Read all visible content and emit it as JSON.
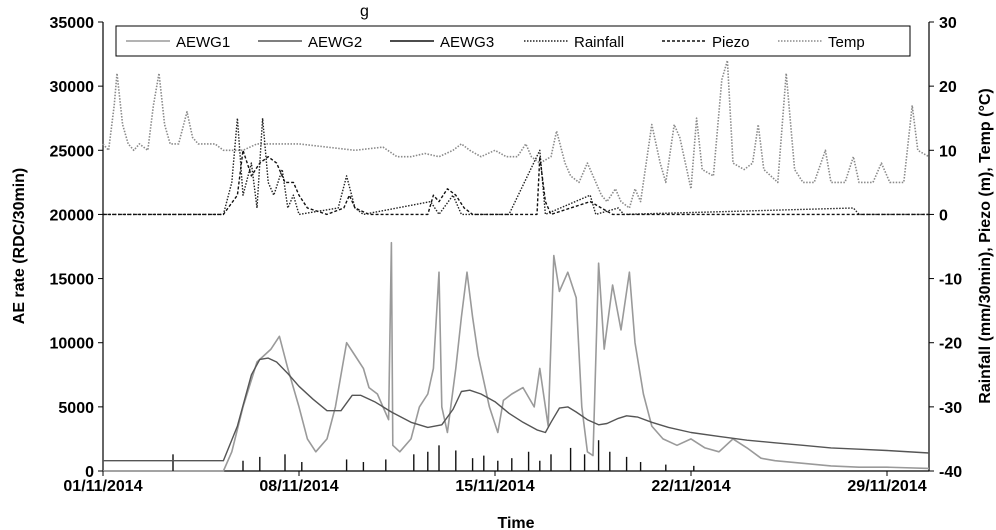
{
  "page": {
    "title_fragment": "g"
  },
  "chart_data": {
    "type": "line",
    "xlabel": "Time",
    "ylabel": "AE rate (RDC/30min)",
    "y2label": "Rainfall (mm/30min), Piezo (m), Temp (°C)",
    "xlim": [
      0,
      29.5
    ],
    "ylim": [
      0,
      35000
    ],
    "y2lim": [
      -40,
      30
    ],
    "x_tick_labels": [
      "01/11/2014",
      "08/11/2014",
      "15/11/2014",
      "22/11/2014",
      "29/11/2014"
    ],
    "x_tick_values": [
      0,
      7,
      14,
      21,
      28
    ],
    "y_ticks": [
      0,
      5000,
      10000,
      15000,
      20000,
      25000,
      30000,
      35000
    ],
    "y2_ticks": [
      -40,
      -30,
      -20,
      -10,
      0,
      10,
      20,
      30
    ],
    "grid": false,
    "legend_position": "top",
    "colors": {
      "AEWG1": "#9a9a9a",
      "AEWG2": "#555555",
      "AEWG3": "#111111",
      "Rainfall": "#222222",
      "Piezo": "#111111",
      "Temp": "#8a8a8a"
    },
    "series": [
      {
        "name": "AEWG1",
        "axis": "left",
        "style": "solid",
        "x_unit": "days since 01/11/2014",
        "points": [
          [
            0,
            0
          ],
          [
            4.3,
            0
          ],
          [
            4.6,
            1500
          ],
          [
            5,
            5000
          ],
          [
            5.5,
            8500
          ],
          [
            6,
            9500
          ],
          [
            6.3,
            10500
          ],
          [
            6.6,
            8000
          ],
          [
            7,
            5000
          ],
          [
            7.3,
            2500
          ],
          [
            7.6,
            1500
          ],
          [
            8,
            2500
          ],
          [
            8.3,
            5000
          ],
          [
            8.7,
            10000
          ],
          [
            9,
            9000
          ],
          [
            9.3,
            8000
          ],
          [
            9.5,
            6500
          ],
          [
            9.8,
            6000
          ],
          [
            10,
            5000
          ],
          [
            10.2,
            4000
          ],
          [
            10.3,
            17800
          ],
          [
            10.35,
            2000
          ],
          [
            10.6,
            1500
          ],
          [
            11,
            2500
          ],
          [
            11.3,
            5000
          ],
          [
            11.6,
            6000
          ],
          [
            11.8,
            8000
          ],
          [
            12,
            15500
          ],
          [
            12.1,
            5000
          ],
          [
            12.3,
            3000
          ],
          [
            12.6,
            8000
          ],
          [
            12.8,
            12000
          ],
          [
            13,
            15500
          ],
          [
            13.2,
            12000
          ],
          [
            13.4,
            9000
          ],
          [
            13.6,
            7000
          ],
          [
            13.8,
            5000
          ],
          [
            14.1,
            3000
          ],
          [
            14.3,
            5500
          ],
          [
            14.6,
            6000
          ],
          [
            15,
            6500
          ],
          [
            15.4,
            5000
          ],
          [
            15.6,
            8000
          ],
          [
            15.9,
            3500
          ],
          [
            16.1,
            16800
          ],
          [
            16.3,
            14000
          ],
          [
            16.6,
            15500
          ],
          [
            16.9,
            13500
          ],
          [
            17.1,
            5000
          ],
          [
            17.3,
            1500
          ],
          [
            17.5,
            1200
          ],
          [
            17.7,
            16200
          ],
          [
            17.9,
            9500
          ],
          [
            18.2,
            14500
          ],
          [
            18.5,
            11000
          ],
          [
            18.8,
            15500
          ],
          [
            19,
            10000
          ],
          [
            19.3,
            6000
          ],
          [
            19.6,
            3500
          ],
          [
            20,
            2500
          ],
          [
            20.5,
            2000
          ],
          [
            21,
            2500
          ],
          [
            21.5,
            1800
          ],
          [
            22,
            1500
          ],
          [
            22.5,
            2500
          ],
          [
            23,
            1800
          ],
          [
            23.5,
            1000
          ],
          [
            24,
            800
          ],
          [
            25,
            600
          ],
          [
            26,
            400
          ],
          [
            27,
            300
          ],
          [
            28,
            300
          ],
          [
            29.5,
            200
          ]
        ]
      },
      {
        "name": "AEWG2",
        "axis": "left",
        "style": "solid",
        "x_unit": "days since 01/11/2014",
        "points": [
          [
            0,
            800
          ],
          [
            4.3,
            800
          ],
          [
            4.8,
            3500
          ],
          [
            5.3,
            7500
          ],
          [
            5.6,
            8700
          ],
          [
            5.9,
            8800
          ],
          [
            6.2,
            8500
          ],
          [
            6.6,
            7600
          ],
          [
            7,
            6600
          ],
          [
            7.5,
            5600
          ],
          [
            8,
            4700
          ],
          [
            8.5,
            4700
          ],
          [
            8.9,
            5900
          ],
          [
            9.2,
            5900
          ],
          [
            9.7,
            5400
          ],
          [
            10.3,
            4600
          ],
          [
            11,
            3800
          ],
          [
            11.6,
            3400
          ],
          [
            12.1,
            3600
          ],
          [
            12.5,
            4800
          ],
          [
            12.8,
            6200
          ],
          [
            13.1,
            6300
          ],
          [
            13.5,
            6000
          ],
          [
            14,
            5400
          ],
          [
            14.5,
            4500
          ],
          [
            15,
            3800
          ],
          [
            15.5,
            3200
          ],
          [
            15.8,
            3000
          ],
          [
            16,
            3800
          ],
          [
            16.3,
            4900
          ],
          [
            16.6,
            5000
          ],
          [
            16.9,
            4600
          ],
          [
            17.3,
            4000
          ],
          [
            17.7,
            3600
          ],
          [
            18,
            3700
          ],
          [
            18.4,
            4100
          ],
          [
            18.7,
            4300
          ],
          [
            19.1,
            4200
          ],
          [
            19.6,
            3800
          ],
          [
            20.2,
            3400
          ],
          [
            21,
            3000
          ],
          [
            22,
            2700
          ],
          [
            23,
            2400
          ],
          [
            24,
            2200
          ],
          [
            25,
            2000
          ],
          [
            26,
            1800
          ],
          [
            27,
            1700
          ],
          [
            28,
            1600
          ],
          [
            29.5,
            1400
          ]
        ]
      },
      {
        "name": "AEWG3",
        "axis": "left",
        "style": "spikes",
        "x_unit": "days since 01/11/2014",
        "points": [
          [
            2.5,
            1300
          ],
          [
            5,
            800
          ],
          [
            5.6,
            1100
          ],
          [
            6.5,
            1300
          ],
          [
            7.1,
            700
          ],
          [
            8.7,
            900
          ],
          [
            9.3,
            700
          ],
          [
            10.1,
            900
          ],
          [
            11.1,
            1300
          ],
          [
            11.6,
            1500
          ],
          [
            12,
            2000
          ],
          [
            12.6,
            1600
          ],
          [
            13.2,
            1000
          ],
          [
            13.6,
            1200
          ],
          [
            14.1,
            800
          ],
          [
            14.6,
            1000
          ],
          [
            15.2,
            1500
          ],
          [
            15.6,
            800
          ],
          [
            16,
            1300
          ],
          [
            16.7,
            1800
          ],
          [
            17.2,
            1300
          ],
          [
            17.7,
            2400
          ],
          [
            18.1,
            1500
          ],
          [
            18.7,
            1100
          ],
          [
            19.2,
            700
          ],
          [
            20.1,
            500
          ],
          [
            21.1,
            400
          ]
        ]
      },
      {
        "name": "Rainfall",
        "axis": "right",
        "style": "dotted",
        "x_unit": "days since 01/11/2014",
        "points": [
          [
            0,
            0
          ],
          [
            4.3,
            0
          ],
          [
            4.6,
            5
          ],
          [
            4.8,
            15
          ],
          [
            5,
            3
          ],
          [
            5.3,
            8
          ],
          [
            5.5,
            1
          ],
          [
            5.7,
            15
          ],
          [
            5.9,
            5
          ],
          [
            6.1,
            3
          ],
          [
            6.4,
            7
          ],
          [
            6.6,
            1
          ],
          [
            6.8,
            3
          ],
          [
            7,
            0
          ],
          [
            8.4,
            1
          ],
          [
            8.7,
            6
          ],
          [
            9,
            1
          ],
          [
            9.3,
            0
          ],
          [
            11.7,
            2
          ],
          [
            12,
            0
          ],
          [
            12.5,
            3
          ],
          [
            12.8,
            0
          ],
          [
            14.5,
            0
          ],
          [
            15.6,
            10
          ],
          [
            15.8,
            0
          ],
          [
            17.4,
            3
          ],
          [
            17.6,
            0
          ],
          [
            18.4,
            1
          ],
          [
            18.6,
            0
          ],
          [
            26.8,
            1
          ],
          [
            27,
            0
          ],
          [
            29.5,
            0
          ]
        ]
      },
      {
        "name": "Piezo",
        "axis": "right",
        "style": "dashed",
        "x_unit": "days since 01/11/2014",
        "points": [
          [
            0,
            0
          ],
          [
            4.3,
            0
          ],
          [
            4.8,
            3
          ],
          [
            5,
            10
          ],
          [
            5.3,
            6
          ],
          [
            5.6,
            8
          ],
          [
            5.9,
            9
          ],
          [
            6.2,
            8
          ],
          [
            6.5,
            5
          ],
          [
            6.8,
            5
          ],
          [
            7,
            3
          ],
          [
            7.3,
            1
          ],
          [
            8,
            0
          ],
          [
            8.6,
            1
          ],
          [
            8.8,
            3
          ],
          [
            9,
            1
          ],
          [
            9.5,
            0
          ],
          [
            11.6,
            0
          ],
          [
            11.8,
            3
          ],
          [
            12,
            2
          ],
          [
            12.3,
            4
          ],
          [
            12.6,
            3
          ],
          [
            12.9,
            1
          ],
          [
            13.2,
            0
          ],
          [
            15.5,
            0
          ],
          [
            15.6,
            9
          ],
          [
            15.8,
            2
          ],
          [
            16,
            0
          ],
          [
            17.4,
            2
          ],
          [
            17.8,
            1
          ],
          [
            18.2,
            0
          ],
          [
            29.5,
            0
          ]
        ]
      },
      {
        "name": "Temp",
        "axis": "right",
        "style": "dotted",
        "x_unit": "days since 01/11/2014",
        "points": [
          [
            0,
            11
          ],
          [
            0.2,
            10
          ],
          [
            0.4,
            17
          ],
          [
            0.5,
            22
          ],
          [
            0.7,
            14
          ],
          [
            0.9,
            11
          ],
          [
            1.1,
            10
          ],
          [
            1.3,
            11
          ],
          [
            1.6,
            10
          ],
          [
            1.8,
            17
          ],
          [
            2,
            22
          ],
          [
            2.2,
            14
          ],
          [
            2.4,
            11
          ],
          [
            2.7,
            11
          ],
          [
            3,
            16
          ],
          [
            3.2,
            12
          ],
          [
            3.4,
            11
          ],
          [
            3.6,
            11
          ],
          [
            4,
            11
          ],
          [
            4.3,
            10
          ],
          [
            4.6,
            10
          ],
          [
            5,
            10
          ],
          [
            5.5,
            11
          ],
          [
            6,
            11
          ],
          [
            7,
            11
          ],
          [
            8,
            10.5
          ],
          [
            9,
            10
          ],
          [
            10,
            10.5
          ],
          [
            10.5,
            9
          ],
          [
            11,
            9
          ],
          [
            11.5,
            9.5
          ],
          [
            12,
            9
          ],
          [
            12.5,
            10
          ],
          [
            12.8,
            11
          ],
          [
            13.1,
            10
          ],
          [
            13.5,
            9
          ],
          [
            14,
            10
          ],
          [
            14.4,
            9
          ],
          [
            14.8,
            9
          ],
          [
            15.1,
            11
          ],
          [
            15.3,
            9
          ],
          [
            15.6,
            8
          ],
          [
            16,
            9
          ],
          [
            16.2,
            13
          ],
          [
            16.5,
            8
          ],
          [
            16.7,
            6
          ],
          [
            17,
            5
          ],
          [
            17.3,
            8
          ],
          [
            17.5,
            6
          ],
          [
            17.8,
            3
          ],
          [
            18,
            2
          ],
          [
            18.3,
            4
          ],
          [
            18.5,
            2
          ],
          [
            18.8,
            1
          ],
          [
            19,
            4
          ],
          [
            19.2,
            2
          ],
          [
            19.6,
            14
          ],
          [
            19.9,
            8
          ],
          [
            20.1,
            5
          ],
          [
            20.4,
            14
          ],
          [
            20.6,
            12
          ],
          [
            21,
            4
          ],
          [
            21.2,
            15
          ],
          [
            21.4,
            7
          ],
          [
            21.8,
            6
          ],
          [
            22.1,
            21
          ],
          [
            22.3,
            24
          ],
          [
            22.5,
            8
          ],
          [
            22.9,
            7
          ],
          [
            23.2,
            8
          ],
          [
            23.4,
            14
          ],
          [
            23.6,
            7
          ],
          [
            24.1,
            5
          ],
          [
            24.4,
            22
          ],
          [
            24.7,
            7
          ],
          [
            25,
            5
          ],
          [
            25.4,
            5
          ],
          [
            25.8,
            10
          ],
          [
            26,
            5
          ],
          [
            26.5,
            5
          ],
          [
            26.8,
            9
          ],
          [
            27,
            5
          ],
          [
            27.5,
            5
          ],
          [
            27.8,
            8
          ],
          [
            28.1,
            5
          ],
          [
            28.6,
            5
          ],
          [
            28.9,
            17
          ],
          [
            29.1,
            10
          ],
          [
            29.5,
            9
          ]
        ]
      }
    ]
  }
}
